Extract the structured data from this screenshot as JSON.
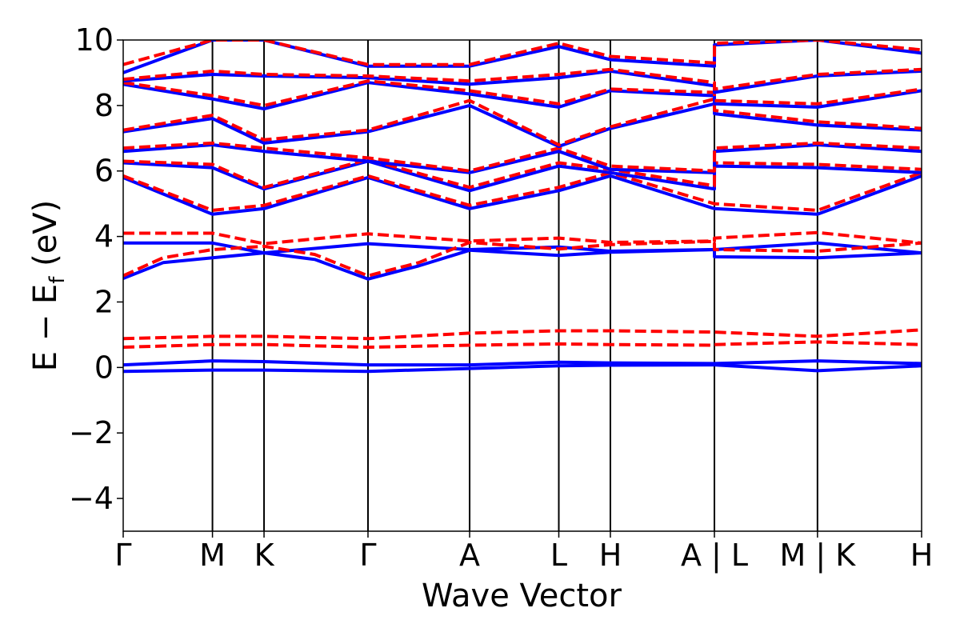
{
  "chart_data": {
    "type": "line",
    "xlabel": "Wave Vector",
    "ylabel_main": "E − E",
    "ylabel_sub": "f",
    "ylabel_unit": " (eV)",
    "ylim": [
      -5,
      10
    ],
    "yticks": [
      -4,
      -2,
      0,
      2,
      4,
      6,
      8,
      10
    ],
    "ytick_labels": [
      "−4",
      "−2",
      "0",
      "2",
      "4",
      "6",
      "8",
      "10"
    ],
    "xlim": [
      0,
      1
    ],
    "kpoints": [
      {
        "label": "Γ",
        "x": 0.0
      },
      {
        "label": "M",
        "x": 0.1118
      },
      {
        "label": "K",
        "x": 0.1764
      },
      {
        "label": "Γ",
        "x": 0.3066
      },
      {
        "label": "A",
        "x": 0.4339
      },
      {
        "label": "L",
        "x": 0.5456
      },
      {
        "label": "H",
        "x": 0.6102
      },
      {
        "label": "A | L",
        "x": 0.7405
      },
      {
        "label": "M | K",
        "x": 0.8696
      },
      {
        "label": "H",
        "x": 1.0
      }
    ],
    "colors": {
      "spin_up": "#0000ff",
      "spin_down": "#ff0000"
    },
    "series": [
      {
        "style": "solid",
        "color": "#0000ff",
        "x": [
          0,
          0.1118,
          0.1764,
          0.3066,
          0.4339,
          0.5456,
          0.6102,
          0.7405,
          0.7406,
          0.8696,
          1.0
        ],
        "y": [
          -0.12,
          -0.08,
          -0.08,
          -0.12,
          -0.03,
          0.05,
          0.07,
          0.08,
          0.08,
          -0.1,
          0.05
        ]
      },
      {
        "style": "solid",
        "color": "#0000ff",
        "x": [
          0,
          0.1118,
          0.1764,
          0.3066,
          0.4339,
          0.5456,
          0.6102,
          0.7405,
          0.7406,
          0.8696,
          1.0
        ],
        "y": [
          0.08,
          0.2,
          0.18,
          0.08,
          0.08,
          0.16,
          0.14,
          0.12,
          0.12,
          0.2,
          0.12
        ]
      },
      {
        "style": "dashed",
        "color": "#ff0000",
        "x": [
          0,
          0.1118,
          0.1764,
          0.3066,
          0.4339,
          0.5456,
          0.6102,
          0.7405,
          0.7406,
          0.8696,
          1.0
        ],
        "y": [
          0.62,
          0.7,
          0.7,
          0.62,
          0.68,
          0.72,
          0.7,
          0.68,
          0.7,
          0.78,
          0.7
        ]
      },
      {
        "style": "dashed",
        "color": "#ff0000",
        "x": [
          0,
          0.1118,
          0.1764,
          0.3066,
          0.4339,
          0.5456,
          0.6102,
          0.7405,
          0.7406,
          0.8696,
          1.0
        ],
        "y": [
          0.88,
          0.95,
          0.95,
          0.88,
          1.05,
          1.12,
          1.12,
          1.08,
          1.08,
          0.95,
          1.15
        ]
      },
      {
        "style": "solid",
        "color": "#0000ff",
        "x": [
          0,
          0.05,
          0.1118,
          0.1764,
          0.24,
          0.3066,
          0.37,
          0.4339,
          0.5456,
          0.6102,
          0.7405,
          0.7406,
          0.8696,
          1.0
        ],
        "y": [
          2.72,
          3.2,
          3.35,
          3.5,
          3.3,
          2.7,
          3.1,
          3.58,
          3.42,
          3.52,
          3.6,
          3.38,
          3.35,
          3.5
        ]
      },
      {
        "style": "solid",
        "color": "#0000ff",
        "x": [
          0,
          0.1118,
          0.1764,
          0.3066,
          0.4339,
          0.5456,
          0.6102,
          0.7405,
          0.7406,
          0.8696,
          1.0
        ],
        "y": [
          3.8,
          3.8,
          3.5,
          3.78,
          3.6,
          3.68,
          3.55,
          3.6,
          3.6,
          3.8,
          3.5
        ]
      },
      {
        "style": "dashed",
        "color": "#ff0000",
        "x": [
          0,
          0.05,
          0.1118,
          0.1764,
          0.24,
          0.3066,
          0.37,
          0.4339,
          0.5456,
          0.6102,
          0.7405,
          0.7406,
          0.8696,
          1.0
        ],
        "y": [
          2.8,
          3.35,
          3.6,
          3.7,
          3.45,
          2.8,
          3.2,
          3.82,
          3.62,
          3.75,
          3.85,
          3.6,
          3.55,
          3.8
        ]
      },
      {
        "style": "dashed",
        "color": "#ff0000",
        "x": [
          0,
          0.1118,
          0.1764,
          0.3066,
          0.4339,
          0.5456,
          0.6102,
          0.7405,
          0.7406,
          0.8696,
          1.0
        ],
        "y": [
          4.1,
          4.1,
          3.78,
          4.08,
          3.86,
          3.95,
          3.82,
          3.86,
          3.95,
          4.12,
          3.8
        ]
      },
      {
        "style": "solid",
        "color": "#0000ff",
        "x": [
          0,
          0.1118,
          0.1764,
          0.3066,
          0.4339,
          0.5456,
          0.6102,
          0.7405,
          0.7406,
          0.8696,
          1.0
        ],
        "y": [
          5.8,
          4.68,
          4.85,
          5.8,
          4.85,
          5.4,
          5.85,
          4.85,
          4.85,
          4.68,
          5.85
        ]
      },
      {
        "style": "dashed",
        "color": "#ff0000",
        "x": [
          0,
          0.1118,
          0.1764,
          0.3066,
          0.4339,
          0.5456,
          0.6102,
          0.7405,
          0.7406,
          0.8696,
          1.0
        ],
        "y": [
          5.85,
          4.8,
          4.95,
          5.85,
          4.95,
          5.5,
          5.95,
          5.0,
          5.0,
          4.8,
          5.95
        ]
      },
      {
        "style": "solid",
        "color": "#0000ff",
        "x": [
          0,
          0.1118,
          0.1764,
          0.3066,
          0.4339,
          0.5456,
          0.6102,
          0.7405,
          0.7406,
          0.8696,
          1.0
        ],
        "y": [
          6.25,
          6.1,
          5.45,
          6.3,
          5.4,
          6.15,
          5.95,
          5.45,
          6.15,
          6.1,
          5.95
        ]
      },
      {
        "style": "dashed",
        "color": "#ff0000",
        "x": [
          0,
          0.1118,
          0.1764,
          0.3066,
          0.4339,
          0.5456,
          0.6102,
          0.7405,
          0.7406,
          0.8696,
          1.0
        ],
        "y": [
          6.3,
          6.2,
          5.5,
          6.35,
          5.5,
          6.25,
          6.05,
          5.55,
          6.25,
          6.2,
          6.05
        ]
      },
      {
        "style": "solid",
        "color": "#0000ff",
        "x": [
          0,
          0.1118,
          0.1764,
          0.3066,
          0.4339,
          0.5456,
          0.6102,
          0.7405,
          0.7406,
          0.8696,
          1.0
        ],
        "y": [
          6.6,
          6.8,
          6.6,
          6.3,
          5.95,
          6.6,
          6.05,
          5.95,
          6.6,
          6.8,
          6.6
        ]
      },
      {
        "style": "dashed",
        "color": "#ff0000",
        "x": [
          0,
          0.1118,
          0.1764,
          0.3066,
          0.4339,
          0.5456,
          0.6102,
          0.7405,
          0.7406,
          0.8696,
          1.0
        ],
        "y": [
          6.7,
          6.85,
          6.7,
          6.4,
          6.0,
          6.7,
          6.15,
          6.0,
          6.7,
          6.85,
          6.7
        ]
      },
      {
        "style": "solid",
        "color": "#0000ff",
        "x": [
          0,
          0.1118,
          0.1764,
          0.3066,
          0.4339,
          0.5456,
          0.6102,
          0.7405,
          0.7406,
          0.8696,
          1.0
        ],
        "y": [
          7.2,
          7.6,
          6.85,
          7.2,
          8.0,
          6.75,
          7.3,
          8.05,
          7.75,
          7.4,
          7.25
        ]
      },
      {
        "style": "dashed",
        "color": "#ff0000",
        "x": [
          0,
          0.1118,
          0.1764,
          0.3066,
          0.4339,
          0.5456,
          0.6102,
          0.7405,
          0.7406,
          0.8696,
          1.0
        ],
        "y": [
          7.25,
          7.7,
          6.95,
          7.25,
          8.15,
          6.8,
          7.35,
          8.2,
          7.85,
          7.5,
          7.3
        ]
      },
      {
        "style": "solid",
        "color": "#0000ff",
        "x": [
          0,
          0.1118,
          0.1764,
          0.3066,
          0.4339,
          0.5456,
          0.6102,
          0.7405,
          0.7406,
          0.8696,
          1.0
        ],
        "y": [
          8.65,
          8.2,
          7.9,
          8.7,
          8.35,
          7.95,
          8.45,
          8.3,
          8.05,
          7.95,
          8.45
        ]
      },
      {
        "style": "dashed",
        "color": "#ff0000",
        "x": [
          0,
          0.1118,
          0.1764,
          0.3066,
          0.4339,
          0.5456,
          0.6102,
          0.7405,
          0.7406,
          0.8696,
          1.0
        ],
        "y": [
          8.7,
          8.3,
          8.0,
          8.75,
          8.45,
          8.05,
          8.5,
          8.4,
          8.15,
          8.05,
          8.5
        ]
      },
      {
        "style": "solid",
        "color": "#0000ff",
        "x": [
          0,
          0.1118,
          0.1764,
          0.3066,
          0.4339,
          0.5456,
          0.6102,
          0.7405,
          0.7406,
          0.8696,
          1.0
        ],
        "y": [
          8.75,
          8.95,
          8.9,
          8.85,
          8.65,
          8.85,
          9.05,
          8.6,
          8.4,
          8.9,
          9.05
        ]
      },
      {
        "style": "dashed",
        "color": "#ff0000",
        "x": [
          0,
          0.1118,
          0.1764,
          0.3066,
          0.4339,
          0.5456,
          0.6102,
          0.7405,
          0.7406,
          0.8696,
          1.0
        ],
        "y": [
          8.8,
          9.05,
          8.95,
          8.9,
          8.75,
          8.95,
          9.1,
          8.7,
          8.5,
          8.95,
          9.1
        ]
      },
      {
        "style": "solid",
        "color": "#0000ff",
        "x": [
          0,
          0.1118,
          0.1764,
          0.3066,
          0.4339,
          0.5456,
          0.6102,
          0.7405,
          0.7406,
          0.8696,
          1.0
        ],
        "y": [
          9.0,
          10.0,
          10.0,
          9.2,
          9.2,
          9.8,
          9.4,
          9.2,
          9.85,
          10.0,
          9.6
        ]
      },
      {
        "style": "dashed",
        "color": "#ff0000",
        "x": [
          0,
          0.1118,
          0.1764,
          0.3066,
          0.4339,
          0.5456,
          0.6102,
          0.7405,
          0.7406,
          0.8696,
          1.0
        ],
        "y": [
          9.25,
          10.0,
          10.0,
          9.25,
          9.25,
          9.9,
          9.5,
          9.3,
          9.9,
          10.0,
          9.7
        ]
      }
    ]
  }
}
